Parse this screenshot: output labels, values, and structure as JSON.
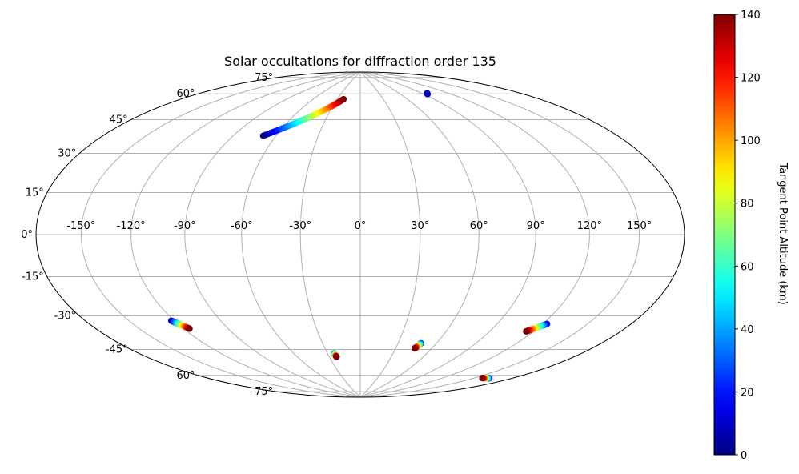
{
  "chart_data": {
    "type": "scatter",
    "projection": "hammer",
    "title": "Solar occultations for diffraction order 135",
    "x_tick_labels": [
      "-150°",
      "-120°",
      "-90°",
      "-60°",
      "-30°",
      "0°",
      "30°",
      "60°",
      "90°",
      "120°",
      "150°"
    ],
    "y_tick_labels": [
      "-75°",
      "-60°",
      "-45°",
      "-30°",
      "-15°",
      "0°",
      "15°",
      "30°",
      "45°",
      "60°",
      "75°"
    ],
    "x_ticks": [
      -150,
      -120,
      -90,
      -60,
      -30,
      0,
      30,
      60,
      90,
      120,
      150
    ],
    "y_ticks": [
      -75,
      -60,
      -45,
      -30,
      -15,
      0,
      15,
      30,
      45,
      60,
      75
    ],
    "grid": true,
    "xlim": [
      -180,
      180
    ],
    "ylim": [
      -90,
      90
    ],
    "colorbar": {
      "label": "Tangent Point Altitude (km)",
      "colormap": "jet",
      "range": [
        0,
        140
      ],
      "tick_labels": [
        "0",
        "20",
        "40",
        "60",
        "80",
        "100",
        "120",
        "140"
      ],
      "ticks": [
        0,
        20,
        40,
        60,
        80,
        100,
        120,
        140
      ]
    },
    "tracks": [
      {
        "lon_start": -69,
        "lat_start": 49,
        "lon_end": -22,
        "lat_end": 72,
        "alt_start": 0,
        "alt_end": 140
      },
      {
        "lon_start": 95,
        "lat_start": 72,
        "lon_end": 96,
        "lat_end": 72.3,
        "alt_start": 0,
        "alt_end": 10
      },
      {
        "lon_start": -122,
        "lat_start": -38.5,
        "lon_end": -116,
        "lat_end": -43,
        "alt_start": 0,
        "alt_end": 140
      },
      {
        "lon_start": -24,
        "lat_start": -62,
        "lon_end": -23,
        "lat_end": -64,
        "alt_start": 30,
        "alt_end": 140
      },
      {
        "lon_start": 48,
        "lat_start": -55.5,
        "lon_end": 46,
        "lat_end": -58.5,
        "alt_start": 20,
        "alt_end": 140
      },
      {
        "lon_start": 123,
        "lat_start": -40,
        "lon_end": 115,
        "lat_end": -44.5,
        "alt_start": 10,
        "alt_end": 140
      },
      {
        "lon_start": 163,
        "lat_start": -65.5,
        "lon_end": 157,
        "lat_end": -66.5,
        "alt_start": 10,
        "alt_end": 140
      }
    ]
  }
}
